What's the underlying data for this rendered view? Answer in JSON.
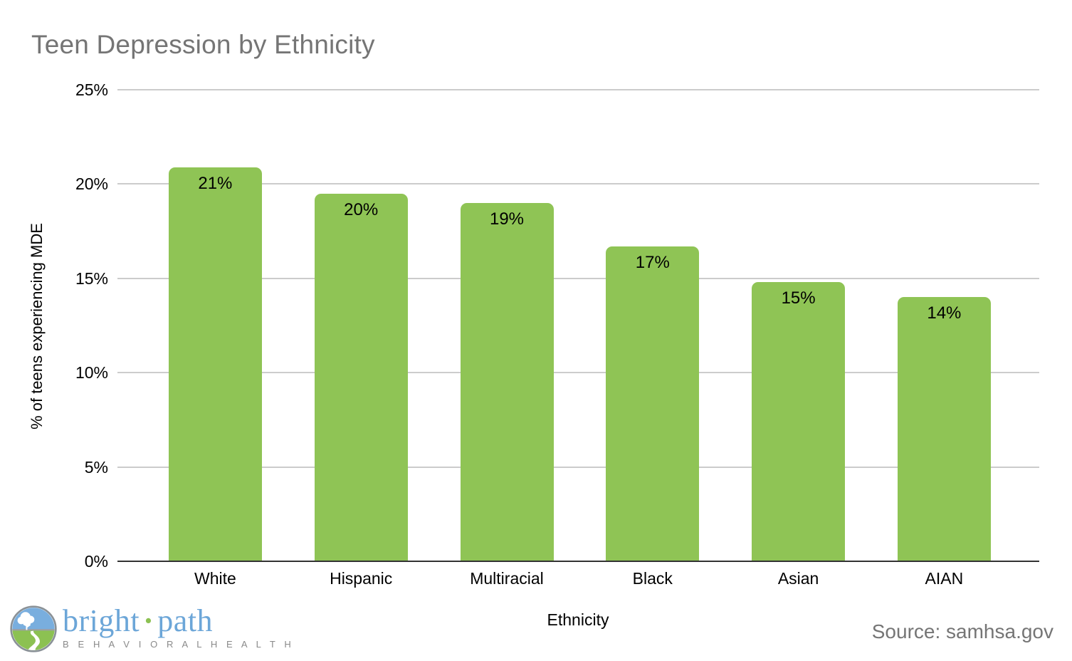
{
  "chart_data": {
    "type": "bar",
    "title": "Teen Depression by Ethnicity",
    "xlabel": "Ethnicity",
    "ylabel": "% of teens experiencing MDE",
    "categories": [
      "White",
      "Hispanic",
      "Multiracial",
      "Black",
      "Asian",
      "AIAN"
    ],
    "values": [
      20.9,
      19.5,
      19.0,
      16.7,
      14.8,
      14.0
    ],
    "bar_labels": [
      "21%",
      "20%",
      "19%",
      "17%",
      "15%",
      "14%"
    ],
    "ylim": [
      0,
      25
    ],
    "yticks": [
      {
        "value": 25,
        "label": "25%"
      },
      {
        "value": 20,
        "label": "20%"
      },
      {
        "value": 15,
        "label": "15%"
      },
      {
        "value": 10,
        "label": "10%"
      },
      {
        "value": 5,
        "label": "5%"
      },
      {
        "value": 0,
        "label": "0%"
      }
    ],
    "grid": "horizontal",
    "legend_position": "none",
    "bar_color": "#8fc455",
    "grid_color": "#cccccc",
    "axis_color": "#333333",
    "title_color": "#757575"
  },
  "footer": {
    "source": "Source: samhsa.gov",
    "logo": {
      "word1": "bright",
      "separator": "·",
      "word2": "path",
      "tagline": "B E H A V I O R A L   H E A L T H",
      "brand_blue": "#6ca6d8",
      "brand_green": "#8cc152",
      "tagline_gray": "#8a8a8a",
      "emblem": "tree-and-path-icon"
    }
  }
}
